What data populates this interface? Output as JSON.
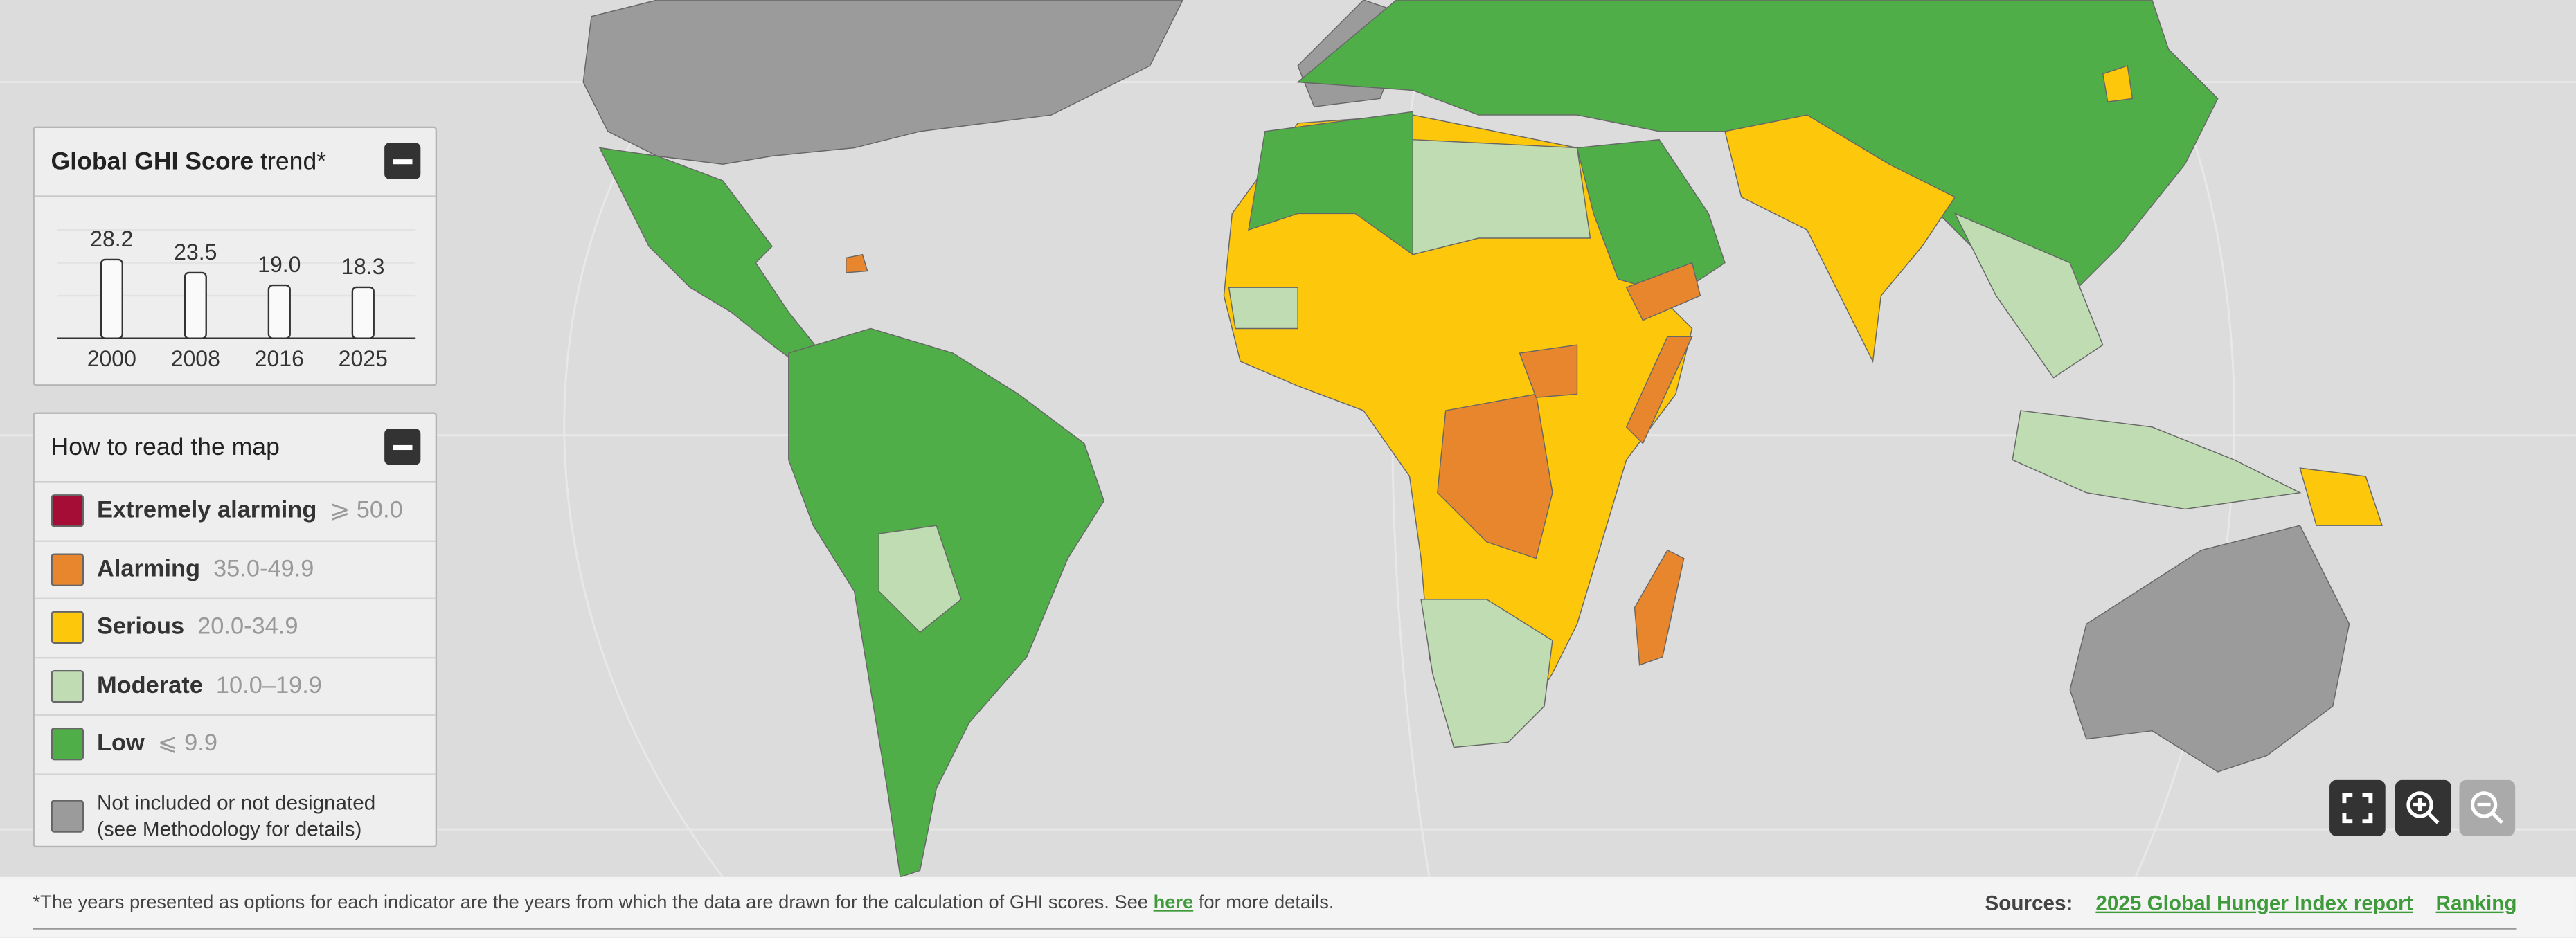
{
  "trend_panel": {
    "title_bold": "Global GHI Score",
    "title_rest": "trend*",
    "chart": {
      "categories": [
        "2000",
        "2008",
        "2016",
        "2025"
      ],
      "values": [
        28.2,
        23.5,
        19.0,
        18.3
      ],
      "value_labels": [
        "28.2",
        "23.5",
        "19.0",
        "18.3"
      ]
    }
  },
  "legend_panel": {
    "title": "How to read the map",
    "items": [
      {
        "label": "Extremely alarming",
        "range": "⩾ 50.0",
        "color": "#a50d36"
      },
      {
        "label": "Alarming",
        "range": "35.0-49.9",
        "color": "#e8862e"
      },
      {
        "label": "Serious",
        "range": "20.0-34.9",
        "color": "#fdc70c"
      },
      {
        "label": "Moderate",
        "range": "10.0–19.9",
        "color": "#bfdcb2"
      },
      {
        "label": "Low",
        "range": "⩽ 9.9",
        "color": "#4fae48"
      },
      {
        "label": "Not included or not designated",
        "note": "(see Methodology for details)",
        "color": "#9b9b9b"
      }
    ]
  },
  "footer": {
    "note": "*The years presented as options for each indicator are the years from which the data are drawn for the calculation of GHI scores. See",
    "link": "here",
    "note_end": "for more details.",
    "sources_label": "Sources:",
    "sources": [
      "2025 Global Hunger Index report",
      "Ranking"
    ]
  }
}
